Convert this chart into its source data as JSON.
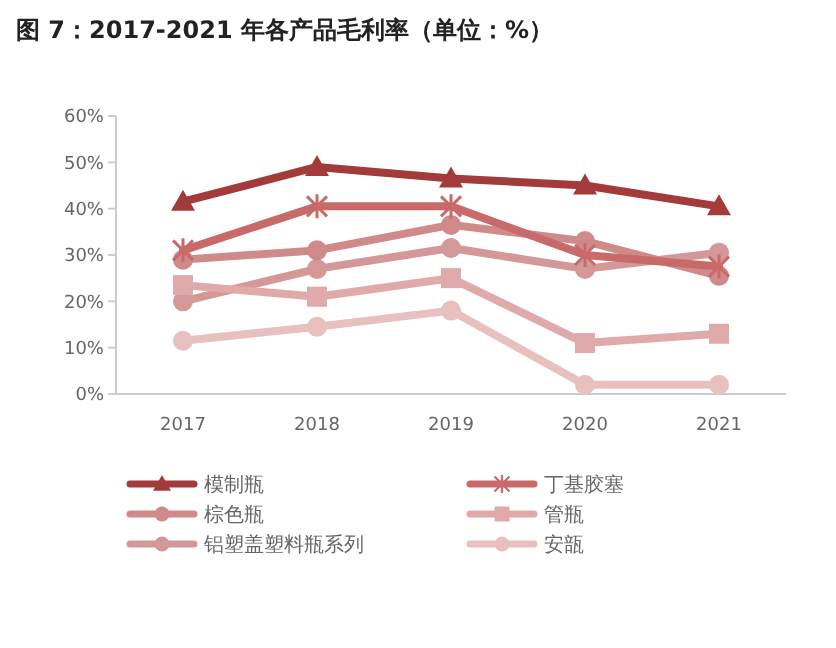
{
  "chart_data": {
    "type": "line",
    "title": "图 7：2017-2021 年各产品毛利率（单位：%）",
    "categories": [
      "2017",
      "2018",
      "2019",
      "2020",
      "2021"
    ],
    "series": [
      {
        "name": "模制瓶",
        "color": "#a33b3b",
        "marker": "triangle",
        "values": [
          41.5,
          49,
          46.5,
          45,
          40.5
        ]
      },
      {
        "name": "丁基胶塞",
        "color": "#c96a6a",
        "marker": "cross",
        "values": [
          31,
          40.5,
          40.5,
          30,
          27.5
        ]
      },
      {
        "name": "棕色瓶",
        "color": "#d08a8a",
        "marker": "circle",
        "values": [
          29,
          31,
          36.5,
          33,
          25.5
        ]
      },
      {
        "name": "管瓶",
        "color": "#e0aaaa",
        "marker": "square",
        "values": [
          23.5,
          21,
          25,
          11,
          13
        ]
      },
      {
        "name": "铝塑盖塑料瓶系列",
        "color": "#d49898",
        "marker": "circle",
        "values": [
          20,
          27,
          31.5,
          27,
          30.5
        ]
      },
      {
        "name": "安瓿",
        "color": "#e8c0c0",
        "marker": "circle",
        "values": [
          11.5,
          14.5,
          18,
          2,
          2
        ]
      }
    ],
    "ylim": [
      0,
      60
    ],
    "yticks": [
      {
        "value": 0,
        "label": "0%"
      },
      {
        "value": 10,
        "label": "10%"
      },
      {
        "value": 20,
        "label": "20%"
      },
      {
        "value": 30,
        "label": "30%"
      },
      {
        "value": 40,
        "label": "40%"
      },
      {
        "value": 50,
        "label": "50%"
      },
      {
        "value": 60,
        "label": "60%"
      }
    ],
    "grid": false,
    "legend": "bottom",
    "line_style": "solid"
  }
}
